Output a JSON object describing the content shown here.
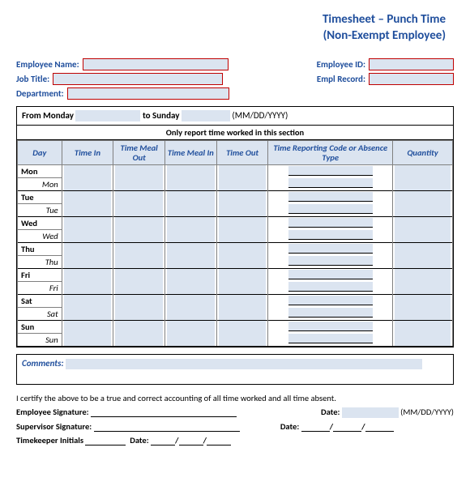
{
  "header": {
    "line1": "Timesheet – Punch Time",
    "line2": "(Non-Exempt Employee)"
  },
  "fields": {
    "employee_name": "Employee Name:",
    "employee_id": "Employee ID:",
    "job_title": "Job Title:",
    "empl_record": "Empl Record:",
    "department": "Department:"
  },
  "range": {
    "from": "From Monday",
    "to": "to Sunday",
    "fmt": "(MM/DD/YYYY)"
  },
  "section_title": "Only report time worked in this section",
  "columns": {
    "day": "Day",
    "time_in": "Time In",
    "meal_out": "Time Meal Out",
    "meal_in": "Time Meal In",
    "time_out": "Time Out",
    "code": "Time Reporting Code or Absence Type",
    "qty": "Quantity"
  },
  "days": [
    {
      "main": "Mon",
      "sub": "Mon"
    },
    {
      "main": "Tue",
      "sub": "Tue"
    },
    {
      "main": "Wed",
      "sub": "Wed"
    },
    {
      "main": "Thu",
      "sub": "Thu"
    },
    {
      "main": "Fri",
      "sub": "Fri"
    },
    {
      "main": "Sat",
      "sub": "Sat"
    },
    {
      "main": "Sun",
      "sub": "Sun"
    }
  ],
  "comments_label": "Comments:",
  "cert_text": "I certify the above to be a true and correct accounting of all time worked and all time absent.",
  "sig": {
    "emp": "Employee Signature:",
    "sup": "Supervisor Signature:",
    "tk": "Timekeeper Initials",
    "date": "Date:",
    "fmt": "(MM/DD/YYYY)"
  },
  "colors": {
    "accent": "#1f4e9c",
    "fill": "#dbe4f0",
    "redbox": "#c00000"
  }
}
